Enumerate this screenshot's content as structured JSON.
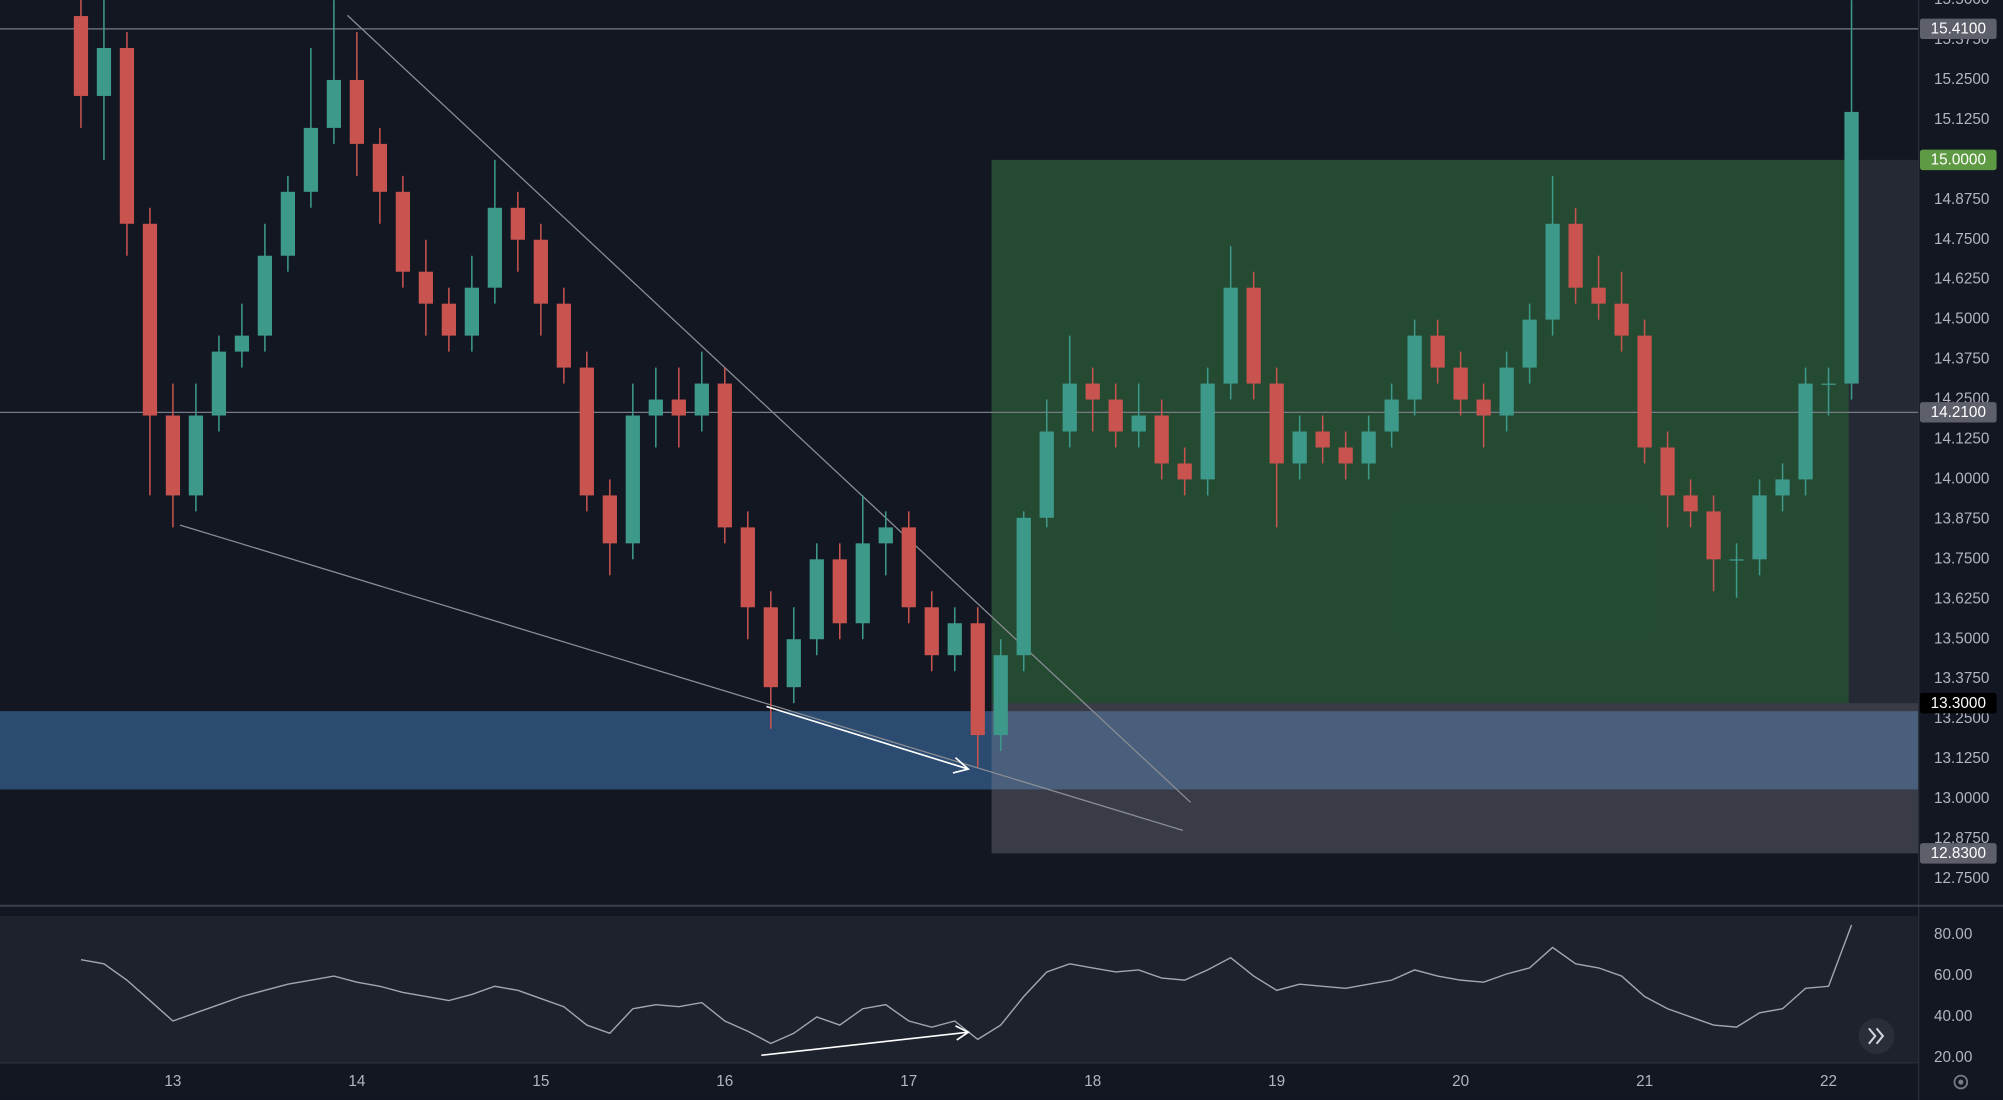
{
  "chart_data": [
    {
      "type": "candlestick",
      "x": [
        12.5,
        12.625,
        12.75,
        12.875,
        13.0,
        13.125,
        13.25,
        13.375,
        13.5,
        13.625,
        13.75,
        13.875,
        14.0,
        14.125,
        14.25,
        14.375,
        14.5,
        14.625,
        14.75,
        14.875,
        15.0,
        15.125,
        15.25,
        15.375,
        15.5,
        15.625,
        15.75,
        15.875,
        16.0,
        16.125,
        16.25,
        16.375,
        16.5,
        16.625,
        16.75,
        16.875,
        17.0,
        17.125,
        17.25,
        17.375,
        17.5,
        17.625,
        17.75,
        17.875,
        18.0,
        18.125,
        18.25,
        18.375,
        18.5,
        18.625,
        18.75,
        18.875,
        19.0,
        19.125,
        19.25,
        19.375,
        19.5,
        19.625,
        19.75,
        19.875,
        20.0,
        20.125,
        20.25,
        20.375,
        20.5,
        20.625,
        20.75,
        20.875,
        21.0,
        21.125,
        21.25,
        21.375,
        21.5,
        21.625,
        21.75,
        21.875,
        22.0,
        22.125
      ],
      "open": [
        15.45,
        15.2,
        15.35,
        14.8,
        14.2,
        13.95,
        14.2,
        14.4,
        14.45,
        14.7,
        14.9,
        15.1,
        15.25,
        15.05,
        14.9,
        14.65,
        14.55,
        14.45,
        14.6,
        14.85,
        14.75,
        14.55,
        14.35,
        13.95,
        13.8,
        14.2,
        14.25,
        14.2,
        14.3,
        13.85,
        13.6,
        13.35,
        13.5,
        13.75,
        13.55,
        13.8,
        13.85,
        13.6,
        13.45,
        13.55,
        13.2,
        13.45,
        13.88,
        14.15,
        14.3,
        14.25,
        14.15,
        14.2,
        14.05,
        14.0,
        14.3,
        14.6,
        14.3,
        14.05,
        14.15,
        14.1,
        14.05,
        14.15,
        14.25,
        14.45,
        14.35,
        14.25,
        14.2,
        14.35,
        14.5,
        14.8,
        14.6,
        14.55,
        14.45,
        14.1,
        13.95,
        13.9,
        13.75,
        13.75,
        13.95,
        14.0,
        14.3,
        14.3
      ],
      "high": [
        15.52,
        15.5,
        15.4,
        14.85,
        14.3,
        14.3,
        14.45,
        14.55,
        14.8,
        14.95,
        15.35,
        15.5,
        15.4,
        15.1,
        14.95,
        14.75,
        14.6,
        14.7,
        15.0,
        14.9,
        14.8,
        14.6,
        14.4,
        14.0,
        14.3,
        14.35,
        14.35,
        14.4,
        14.35,
        13.9,
        13.65,
        13.6,
        13.8,
        13.8,
        13.95,
        13.9,
        13.9,
        13.65,
        13.6,
        13.6,
        13.5,
        13.9,
        14.25,
        14.45,
        14.35,
        14.3,
        14.3,
        14.25,
        14.1,
        14.35,
        14.73,
        14.65,
        14.35,
        14.2,
        14.2,
        14.15,
        14.2,
        14.3,
        14.5,
        14.5,
        14.4,
        14.3,
        14.4,
        14.55,
        14.95,
        14.85,
        14.7,
        14.65,
        14.5,
        14.15,
        14.0,
        13.95,
        13.8,
        14.0,
        14.05,
        14.35,
        14.35,
        15.5
      ],
      "low": [
        15.1,
        15.0,
        14.7,
        13.95,
        13.85,
        13.9,
        14.15,
        14.35,
        14.4,
        14.65,
        14.85,
        15.05,
        14.95,
        14.8,
        14.6,
        14.45,
        14.4,
        14.4,
        14.55,
        14.65,
        14.45,
        14.3,
        13.9,
        13.7,
        13.75,
        14.1,
        14.1,
        14.15,
        13.8,
        13.5,
        13.22,
        13.3,
        13.45,
        13.5,
        13.5,
        13.7,
        13.55,
        13.4,
        13.4,
        13.1,
        13.15,
        13.4,
        13.85,
        14.1,
        14.15,
        14.1,
        14.1,
        14.0,
        13.95,
        13.95,
        14.25,
        14.25,
        13.85,
        14.0,
        14.05,
        14.0,
        14.0,
        14.1,
        14.2,
        14.3,
        14.2,
        14.1,
        14.15,
        14.3,
        14.45,
        14.55,
        14.5,
        14.4,
        14.05,
        13.85,
        13.85,
        13.65,
        13.63,
        13.7,
        13.9,
        13.95,
        14.2,
        14.25
      ],
      "close": [
        15.2,
        15.35,
        14.8,
        14.2,
        13.95,
        14.2,
        14.4,
        14.45,
        14.7,
        14.9,
        15.1,
        15.25,
        15.05,
        14.9,
        14.65,
        14.55,
        14.45,
        14.6,
        14.85,
        14.75,
        14.55,
        14.35,
        13.95,
        13.8,
        14.2,
        14.25,
        14.2,
        14.3,
        13.85,
        13.6,
        13.35,
        13.5,
        13.75,
        13.55,
        13.8,
        13.85,
        13.6,
        13.45,
        13.55,
        13.2,
        13.45,
        13.88,
        14.15,
        14.3,
        14.25,
        14.15,
        14.2,
        14.05,
        14.0,
        14.3,
        14.6,
        14.3,
        14.05,
        14.15,
        14.1,
        14.05,
        14.15,
        14.25,
        14.45,
        14.35,
        14.25,
        14.2,
        14.35,
        14.5,
        14.8,
        14.6,
        14.55,
        14.45,
        14.1,
        13.95,
        13.9,
        13.75,
        13.75,
        13.95,
        14.0,
        14.3,
        14.3,
        15.15
      ],
      "up_color": "#3d9a8b",
      "down_color": "#c8534f",
      "xlim": [
        12.06,
        22.49
      ],
      "ylim": [
        12.67,
        15.5
      ],
      "xticks": [
        13,
        14,
        15,
        16,
        17,
        18,
        19,
        20,
        21,
        22
      ],
      "yticks": [
        {
          "value": 12.75,
          "label": "12.7500"
        },
        {
          "value": 12.875,
          "label": "12.8750"
        },
        {
          "value": 13.0,
          "label": "13.0000"
        },
        {
          "value": 13.125,
          "label": "13.1250"
        },
        {
          "value": 13.25,
          "label": "13.2500"
        },
        {
          "value": 13.375,
          "label": "13.3750"
        },
        {
          "value": 13.5,
          "label": "13.5000"
        },
        {
          "value": 13.625,
          "label": "13.6250"
        },
        {
          "value": 13.75,
          "label": "13.7500"
        },
        {
          "value": 13.875,
          "label": "13.8750"
        },
        {
          "value": 14.0,
          "label": "14.0000"
        },
        {
          "value": 14.125,
          "label": "14.1250"
        },
        {
          "value": 14.25,
          "label": "14.2500"
        },
        {
          "value": 14.375,
          "label": "14.3750"
        },
        {
          "value": 14.5,
          "label": "14.5000"
        },
        {
          "value": 14.625,
          "label": "14.6250"
        },
        {
          "value": 14.75,
          "label": "14.7500"
        },
        {
          "value": 14.875,
          "label": "14.8750"
        },
        {
          "value": 15.0,
          "label": "15.0000"
        },
        {
          "value": 15.125,
          "label": "15.1250"
        },
        {
          "value": 15.25,
          "label": "15.2500"
        },
        {
          "value": 15.375,
          "label": "15.3750"
        },
        {
          "value": 15.5,
          "label": "15.5000"
        }
      ],
      "horizontal_lines": [
        {
          "value": 15.41,
          "label": "15.4100",
          "color": "#5d606b"
        },
        {
          "value": 14.21,
          "label": "14.2100",
          "color": "#5d606b"
        }
      ],
      "zone": {
        "ylim": [
          13.03,
          13.275
        ],
        "color": "#2b4b70"
      },
      "position": {
        "xlim": [
          17.45,
          22.11
        ],
        "target": {
          "value": 15.0,
          "label": "15.0000",
          "color": "#5e9a44"
        },
        "entry": {
          "value": 13.3,
          "label": "13.3000",
          "color": "#000000"
        },
        "stop": {
          "value": 12.83,
          "label": "12.8300",
          "color": "#5d606b"
        }
      }
    },
    {
      "type": "line",
      "x": [
        12.5,
        12.625,
        12.75,
        12.875,
        13.0,
        13.125,
        13.25,
        13.375,
        13.5,
        13.625,
        13.75,
        13.875,
        14.0,
        14.125,
        14.25,
        14.375,
        14.5,
        14.625,
        14.75,
        14.875,
        15.0,
        15.125,
        15.25,
        15.375,
        15.5,
        15.625,
        15.75,
        15.875,
        16.0,
        16.125,
        16.25,
        16.375,
        16.5,
        16.625,
        16.75,
        16.875,
        17.0,
        17.125,
        17.25,
        17.375,
        17.5,
        17.625,
        17.75,
        17.875,
        18.0,
        18.125,
        18.25,
        18.375,
        18.5,
        18.625,
        18.75,
        18.875,
        19.0,
        19.125,
        19.25,
        19.375,
        19.5,
        19.625,
        19.75,
        19.875,
        20.0,
        20.125,
        20.25,
        20.375,
        20.5,
        20.625,
        20.75,
        20.875,
        21.0,
        21.125,
        21.25,
        21.375,
        21.5,
        21.625,
        21.75,
        21.875,
        22.0,
        22.125
      ],
      "values": [
        68,
        66,
        58,
        48,
        38,
        42,
        46,
        50,
        53,
        56,
        58,
        60,
        57,
        55,
        52,
        50,
        48,
        51,
        55,
        53,
        49,
        45,
        36,
        32,
        44,
        46,
        45,
        47,
        38,
        33,
        27,
        32,
        40,
        36,
        44,
        46,
        38,
        35,
        38,
        29,
        36,
        50,
        62,
        66,
        64,
        62,
        63,
        59,
        58,
        63,
        69,
        60,
        53,
        56,
        55,
        54,
        56,
        58,
        63,
        60,
        58,
        57,
        61,
        64,
        74,
        66,
        64,
        60,
        50,
        44,
        40,
        36,
        35,
        42,
        44,
        54,
        55,
        85
      ],
      "color": "#a3a6af",
      "xlim": [
        12.06,
        22.49
      ],
      "ylim": [
        17.5,
        89.4
      ],
      "yticks": [
        {
          "value": 20,
          "label": "20.00"
        },
        {
          "value": 40,
          "label": "40.00"
        },
        {
          "value": 60,
          "label": "60.00"
        },
        {
          "value": 80,
          "label": "80.00"
        }
      ]
    }
  ]
}
